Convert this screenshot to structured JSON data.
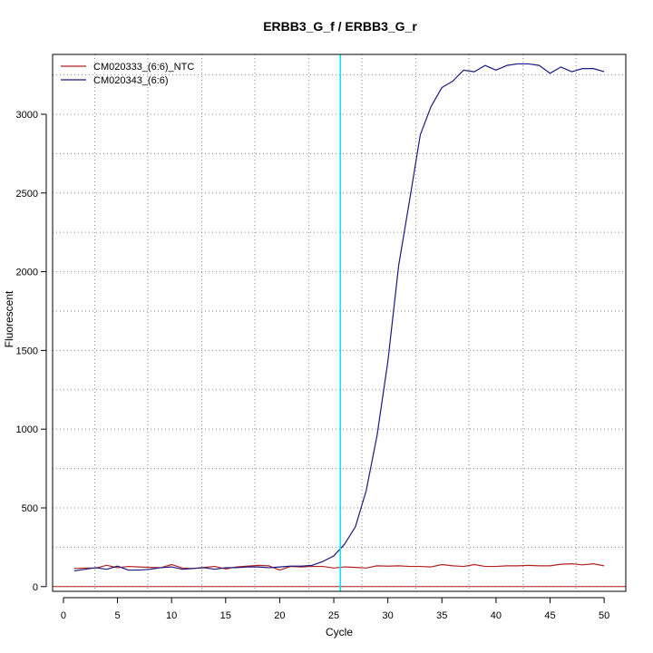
{
  "chart_data": {
    "type": "line",
    "title": "ERBB3_G_f / ERBB3_G_r",
    "xlabel": "Cycle",
    "ylabel": "Fluorescent",
    "xlim": [
      -1,
      52
    ],
    "ylim": [
      -30,
      3380
    ],
    "xticks": [
      0,
      5,
      10,
      15,
      20,
      25,
      30,
      35,
      40,
      45,
      50
    ],
    "yticks": [
      0,
      500,
      1000,
      1500,
      2000,
      2500,
      3000
    ],
    "grid": true,
    "legend_position": "top-left",
    "baseline": 0,
    "threshold_cycle": 25.6,
    "colors": {
      "ntc": "#b22222",
      "sample": "#1a1a80",
      "threshold": "#00e5ff",
      "baseline": "#b22222",
      "grid": "#888888"
    },
    "vertical_gridlines": [
      2.9,
      7.8,
      12.8,
      17.7,
      22.7,
      27.6,
      32.6,
      37.5,
      42.5,
      47.4
    ],
    "series": [
      {
        "name": "CM020333_(6:6)_NTC",
        "color": "#b22222",
        "x": [
          1,
          2,
          3,
          4,
          5,
          6,
          7,
          8,
          9,
          10,
          11,
          12,
          13,
          14,
          15,
          16,
          17,
          18,
          19,
          20,
          21,
          22,
          23,
          24,
          25,
          26,
          27,
          28,
          29,
          30,
          31,
          32,
          33,
          34,
          35,
          36,
          37,
          38,
          39,
          40,
          41,
          42,
          43,
          44,
          45,
          46,
          47,
          48,
          49,
          50
        ],
        "y": [
          115,
          118,
          118,
          135,
          120,
          128,
          125,
          122,
          120,
          140,
          118,
          115,
          122,
          128,
          112,
          125,
          130,
          135,
          132,
          105,
          128,
          125,
          128,
          128,
          118,
          125,
          122,
          118,
          132,
          130,
          132,
          128,
          128,
          125,
          140,
          132,
          128,
          140,
          128,
          128,
          132,
          132,
          135,
          132,
          132,
          142,
          145,
          138,
          145,
          132
        ]
      },
      {
        "name": "CM020343_(6:6)",
        "color": "#1a1a80",
        "x": [
          1,
          2,
          3,
          4,
          5,
          6,
          7,
          8,
          9,
          10,
          11,
          12,
          13,
          14,
          15,
          16,
          17,
          18,
          19,
          20,
          21,
          22,
          23,
          24,
          25,
          26,
          27,
          28,
          29,
          30,
          31,
          32,
          33,
          34,
          35,
          36,
          37,
          38,
          39,
          40,
          41,
          42,
          43,
          44,
          45,
          46,
          47,
          48,
          49,
          50
        ],
        "y": [
          100,
          110,
          120,
          110,
          130,
          105,
          105,
          110,
          120,
          125,
          110,
          115,
          120,
          110,
          120,
          120,
          125,
          125,
          120,
          125,
          130,
          130,
          135,
          160,
          195,
          270,
          380,
          610,
          960,
          1430,
          2040,
          2450,
          2870,
          3050,
          3170,
          3210,
          3280,
          3270,
          3310,
          3280,
          3310,
          3320,
          3320,
          3310,
          3260,
          3300,
          3270,
          3290,
          3290,
          3270
        ]
      }
    ]
  }
}
